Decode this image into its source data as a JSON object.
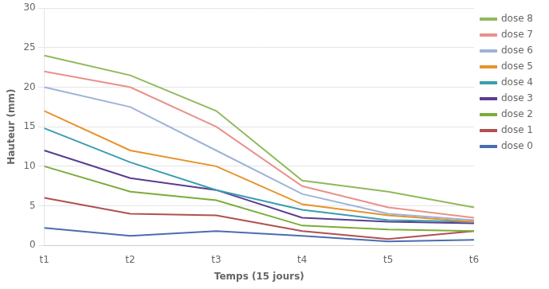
{
  "chart_data": {
    "type": "line",
    "x_label": "Temps (15 jours)",
    "y_label": "Hauteur (mm)",
    "categories": [
      "t1",
      "t2",
      "t3",
      "t4",
      "t5",
      "t6"
    ],
    "series": [
      {
        "name": "dose 8",
        "color": "#8fba5a",
        "values": [
          24.0,
          21.5,
          17.0,
          8.2,
          6.8,
          4.8
        ]
      },
      {
        "name": "dose 7",
        "color": "#e8928a",
        "values": [
          22.0,
          20.0,
          15.0,
          7.5,
          4.8,
          3.5
        ]
      },
      {
        "name": "dose 6",
        "color": "#9db3d8",
        "values": [
          20.0,
          17.5,
          12.0,
          6.5,
          4.0,
          3.2
        ]
      },
      {
        "name": "dose 5",
        "color": "#e8922a",
        "values": [
          17.0,
          12.0,
          10.0,
          5.2,
          3.8,
          3.0
        ]
      },
      {
        "name": "dose 4",
        "color": "#3a9db0",
        "values": [
          14.8,
          10.5,
          7.0,
          4.5,
          3.2,
          3.0
        ]
      },
      {
        "name": "dose 3",
        "color": "#5a3d8f",
        "values": [
          12.0,
          8.5,
          7.0,
          3.5,
          3.0,
          2.8
        ]
      },
      {
        "name": "dose 2",
        "color": "#7aad3a",
        "values": [
          10.0,
          6.8,
          5.7,
          2.5,
          2.0,
          1.8
        ]
      },
      {
        "name": "dose 1",
        "color": "#b05050",
        "values": [
          6.0,
          4.0,
          3.8,
          1.8,
          0.8,
          1.8
        ]
      },
      {
        "name": "dose 0",
        "color": "#4a6db0",
        "values": [
          2.2,
          1.2,
          1.8,
          1.2,
          0.5,
          0.7
        ]
      }
    ],
    "ylim": [
      0,
      30
    ],
    "yticks": [
      0,
      5,
      10,
      15,
      20,
      25,
      30
    ],
    "grid": "y",
    "legend": "upper right"
  }
}
